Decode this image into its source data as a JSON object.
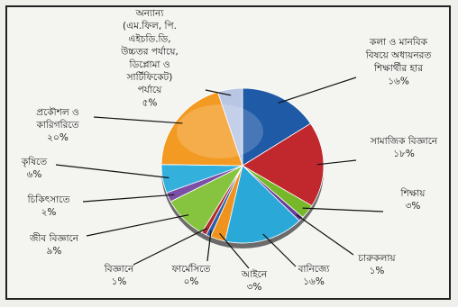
{
  "chart_data": {
    "type": "pie",
    "title": "",
    "slices": [
      {
        "label": "কলা ও মানবিক বিষয়ে অধ্যয়নরত শিক্ষার্থীর হার",
        "value_text": "১৬%",
        "value": 16,
        "color": "#1f5aa6"
      },
      {
        "label": "সামাজিক বিজ্ঞানে",
        "value_text": "১৮%",
        "value": 18,
        "color": "#c0282d"
      },
      {
        "label": "শিক্ষায়",
        "value_text": "৩%",
        "value": 3,
        "color": "#76b82a"
      },
      {
        "label": "চারুকলায়",
        "value_text": "১%",
        "value": 1,
        "color": "#6a3d9a"
      },
      {
        "label": "বানিজ্যে",
        "value_text": "১৬%",
        "value": 16,
        "color": "#2aa8d8"
      },
      {
        "label": "আইনে",
        "value_text": "৩%",
        "value": 3,
        "color": "#f0921e"
      },
      {
        "label": "ফার্মেসিতে",
        "value_text": "০%",
        "value": 0,
        "color": "#2b5fa8"
      },
      {
        "label": "বিজ্ঞানে",
        "value_text": "১%",
        "value": 1,
        "color": "#b22a2f"
      },
      {
        "label": "জীব বিজ্ঞানে",
        "value_text": "৯%",
        "value": 9,
        "color": "#86c440"
      },
      {
        "label": "চিকিৎসাতে",
        "value_text": "২%",
        "value": 2,
        "color": "#7b4fa6"
      },
      {
        "label": "কৃষিতে",
        "value_text": "৬%",
        "value": 6,
        "color": "#33b0dc"
      },
      {
        "label": "প্রকৌশল ও কারিগরিতে",
        "value_text": "২০%",
        "value": 20,
        "color": "#f39a23"
      },
      {
        "label": "অন্যান্য (এম.ফিল, পি. এইচডি.ডি, উচ্চতর পর্যায়ে, ডিপ্লোমা ও সার্টিফিকেট) পর্যায়ে",
        "value_text": "৫%",
        "value": 5,
        "color": "#b8c6e4"
      }
    ]
  }
}
